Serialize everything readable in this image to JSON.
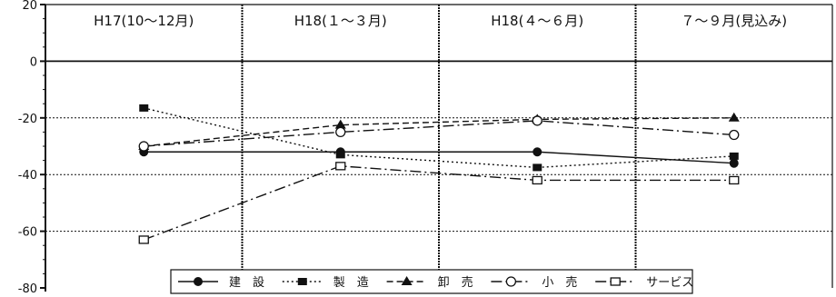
{
  "chart_data": {
    "type": "line",
    "ylim": [
      -80,
      20
    ],
    "yticks": [
      "20",
      "0",
      "-20",
      "-40",
      "-60",
      "-80"
    ],
    "categories": [
      "H17(10～12月)",
      "H18(１～３月)",
      "H18(４～６月)",
      "７～９月(見込み)"
    ],
    "grid": true,
    "legend_position": "bottom",
    "series": [
      {
        "name": "建　設",
        "values": [
          -32,
          -32,
          -32,
          -36
        ],
        "marker": "filled-circle",
        "dash": "solid"
      },
      {
        "name": "製　造",
        "values": [
          -16.5,
          -33,
          -37.5,
          -33.5
        ],
        "marker": "filled-square",
        "dash": "dotted"
      },
      {
        "name": "卸　売",
        "values": [
          -30,
          -22.5,
          -20.5,
          -20
        ],
        "marker": "filled-triangle",
        "dash": "dashed"
      },
      {
        "name": "小　売",
        "values": [
          -30,
          -25,
          -21,
          -26
        ],
        "marker": "open-circle",
        "dash": "dashdot"
      },
      {
        "name": "サービス",
        "values": [
          -63,
          -37,
          -42,
          -42
        ],
        "marker": "open-square",
        "dash": "dashdot"
      }
    ]
  }
}
